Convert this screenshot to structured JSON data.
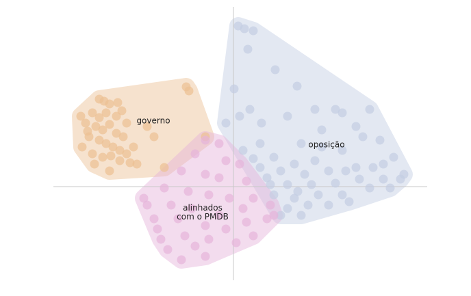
{
  "chart_data": {
    "type": "scatter",
    "xlim": [
      -263,
      283
    ],
    "ylim": [
      -137,
      263
    ],
    "series": [
      {
        "name": "oposição",
        "color": "#c3cde3",
        "x": [
          7,
          16,
          29,
          21,
          61,
          93,
          1,
          24,
          9,
          -11,
          41,
          79,
          119,
          149,
          159,
          199,
          179,
          129,
          99,
          39,
          14,
          59,
          89,
          119,
          159,
          189,
          214,
          234,
          249,
          219,
          179,
          139,
          104,
          69,
          49,
          79,
          114,
          149,
          184,
          219,
          244,
          59,
          89,
          124,
          159,
          199,
          229,
          79,
          109,
          139,
          169,
          99,
          69,
          39,
          29,
          129,
          204,
          164,
          94,
          54
        ],
        "values": [
          235,
          231,
          228,
          201,
          171,
          147,
          143,
          113,
          103,
          93,
          93,
          103,
          113,
          113,
          108,
          113,
          88,
          83,
          63,
          63,
          53,
          43,
          33,
          38,
          53,
          73,
          68,
          43,
          18,
          33,
          28,
          23,
          18,
          23,
          13,
          3,
          3,
          5,
          11,
          11,
          11,
          -12,
          -17,
          -12,
          -12,
          -2,
          -2,
          -32,
          -27,
          -27,
          -22,
          -42,
          -42,
          28,
          41,
          58,
          28,
          23,
          -7,
          3
        ]
      },
      {
        "name": "governo",
        "color": "#edc193",
        "x": [
          -69,
          -65,
          -196,
          -189,
          -181,
          -169,
          -163,
          -206,
          -223,
          -216,
          -201,
          -191,
          -181,
          -171,
          -161,
          -211,
          -196,
          -186,
          -176,
          -166,
          -156,
          -221,
          -206,
          -191,
          -151,
          -141,
          -181,
          -126,
          -116,
          -101,
          -41,
          -171,
          -196,
          -186,
          -146,
          -213,
          -156,
          -203,
          -166,
          -179
        ],
        "values": [
          146,
          140,
          128,
          125,
          121,
          123,
          111,
          108,
          103,
          93,
          88,
          83,
          91,
          78,
          73,
          73,
          68,
          63,
          58,
          53,
          48,
          58,
          48,
          43,
          35,
          33,
          23,
          88,
          73,
          28,
          73,
          103,
          101,
          108,
          58,
          81,
          93,
          33,
          38,
          45
        ]
      },
      {
        "name": "alinhados com o PMDB",
        "color": "#e6b3da",
        "x": [
          -41,
          -21,
          -56,
          -11,
          9,
          -76,
          -41,
          -21,
          19,
          -101,
          -66,
          -36,
          -6,
          29,
          54,
          -126,
          -91,
          -61,
          -116,
          -81,
          -41,
          -11,
          19,
          49,
          -106,
          -71,
          -36,
          4,
          29,
          -76,
          -41,
          -96,
          -56,
          -131,
          59,
          14,
          -21,
          -111
        ],
        "values": [
          68,
          63,
          48,
          38,
          33,
          23,
          18,
          13,
          8,
          -2,
          -7,
          -12,
          -17,
          -17,
          -27,
          -27,
          -27,
          -32,
          -47,
          -47,
          -57,
          -62,
          -52,
          -47,
          -77,
          -72,
          -77,
          -82,
          -72,
          -107,
          -102,
          -92,
          -87,
          -17,
          -42,
          -32,
          -42,
          -62
        ]
      }
    ]
  }
}
